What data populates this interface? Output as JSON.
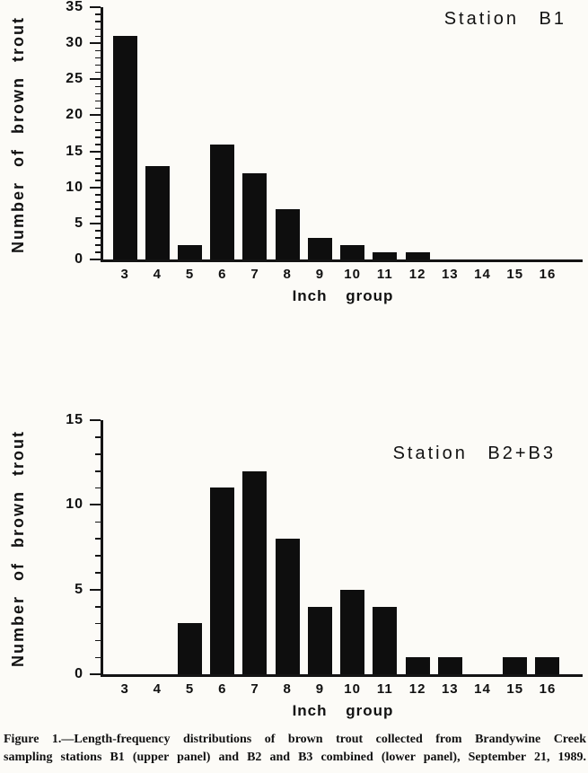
{
  "chart_data": [
    {
      "type": "bar",
      "title": "Station B1",
      "categories": [
        "3",
        "4",
        "5",
        "6",
        "7",
        "8",
        "9",
        "10",
        "11",
        "12",
        "13",
        "14",
        "15",
        "16"
      ],
      "values": [
        31,
        13,
        2,
        16,
        12,
        7,
        3,
        2,
        1,
        1,
        0,
        0,
        0,
        0
      ],
      "xlabel": "Inch group",
      "ylabel": "Number of brown trout",
      "ylim": [
        0,
        35
      ],
      "ytick_major": 5,
      "ytick_minor": 1,
      "ytick_labels": [
        "0",
        "5",
        "10",
        "15",
        "20",
        "25",
        "30",
        "35"
      ],
      "bar_color": "#0e0e0e",
      "grid": false,
      "legend": "none"
    },
    {
      "type": "bar",
      "title": "Station B2+B3",
      "categories": [
        "3",
        "4",
        "5",
        "6",
        "7",
        "8",
        "9",
        "10",
        "11",
        "12",
        "13",
        "14",
        "15",
        "16"
      ],
      "values": [
        0,
        0,
        3,
        11,
        12,
        8,
        4,
        5,
        4,
        1,
        1,
        0,
        1,
        1
      ],
      "xlabel": "Inch group",
      "ylabel": "Number of brown trout",
      "ylim": [
        0,
        15
      ],
      "ytick_major": 5,
      "ytick_minor": 1,
      "ytick_labels": [
        "0",
        "5",
        "10",
        "15"
      ],
      "bar_color": "#0e0e0e",
      "grid": false,
      "legend": "none"
    }
  ],
  "caption": {
    "line1": "Figure 1.—Length-frequency distributions of brown trout collected from Brandywine Creek",
    "line2": "sampling stations B1 (upper panel) and B2 and B3 combined (lower panel), September 21, 1989."
  }
}
